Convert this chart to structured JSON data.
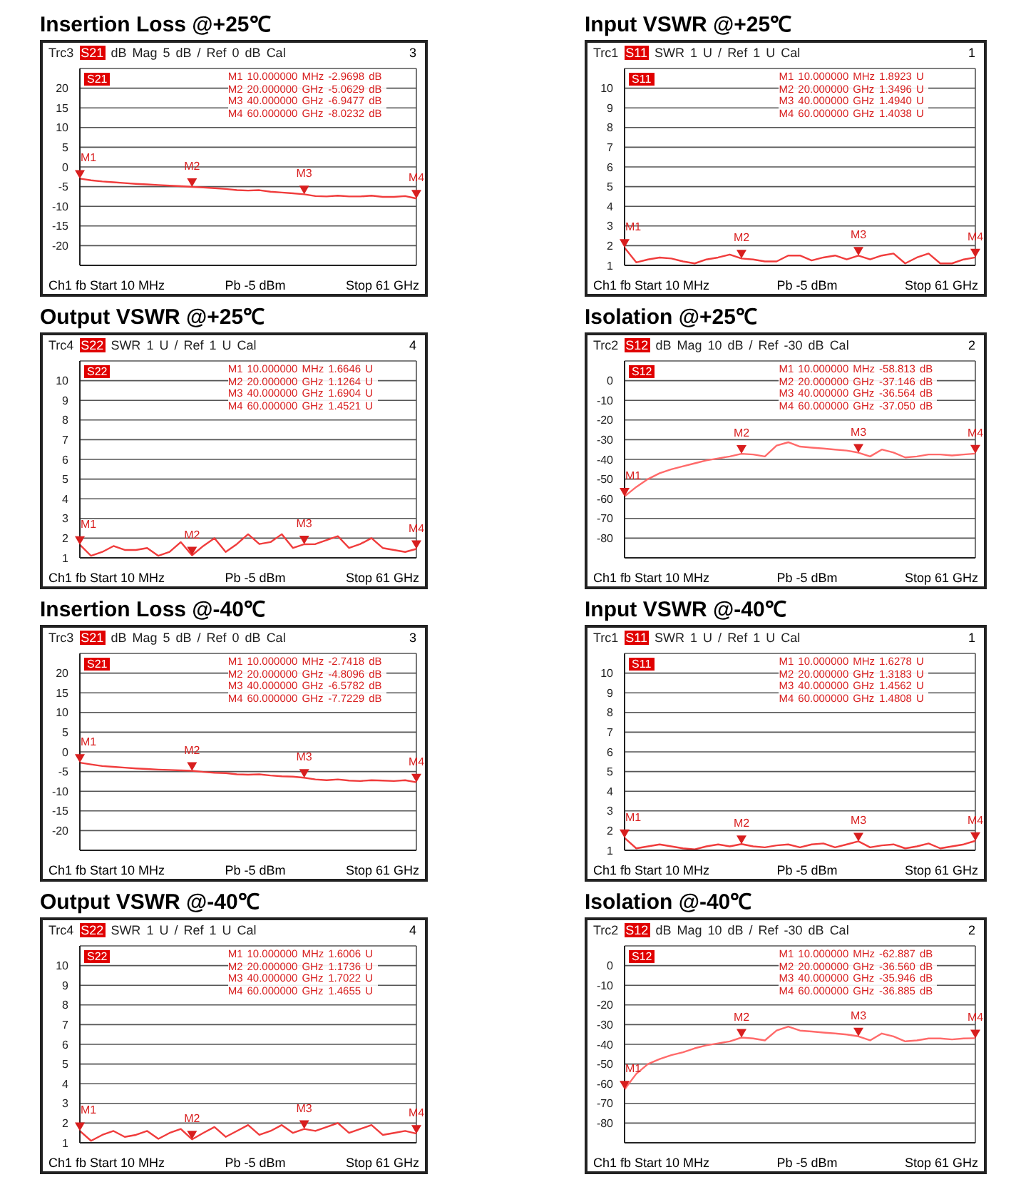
{
  "chart_data": [
    {
      "type": "line",
      "title": "Insertion Loss @+25℃",
      "subtitle": "Trc3 S21 dB Mag 5 dB / Ref 0 dB Cal",
      "color": "#f03c3c",
      "grid": true,
      "tick_labels": "y",
      "categories": [
        null,
        null,
        null,
        null,
        null,
        null,
        null,
        null,
        null,
        null,
        null,
        null,
        null,
        null,
        null,
        null,
        null,
        null,
        null,
        null,
        null,
        null,
        null,
        null,
        null,
        null,
        null,
        null,
        null,
        null,
        null
      ],
      "ylim": [
        -25,
        25
      ],
      "yticks": [
        {
          "value": 25,
          "label": null
        },
        20,
        15,
        10,
        5,
        0,
        -5,
        -10,
        -15,
        -20,
        {
          "value": -25,
          "label": null
        }
      ],
      "values": [
        -2.9698,
        -3.4,
        -3.7,
        -3.9,
        -4.1,
        -4.3,
        -4.45,
        -4.6,
        -4.75,
        -4.9,
        -5.0629,
        -5.2,
        -5.4,
        -5.6,
        -5.9,
        -6.0,
        -5.9,
        -6.3,
        -6.5,
        -6.7,
        -6.9477,
        -7.4,
        -7.5,
        -7.3,
        -7.5,
        -7.5,
        -7.3,
        -7.6,
        -7.6,
        -7.4,
        -8.0232
      ],
      "annotations": [
        "3",
        "S21",
        "M1 10.000000 MHz -2.9698 dB",
        "M2 20.000000 GHz -5.0629 dB",
        "M3 40.000000 GHz -6.9477 dB",
        "M4 60.000000 GHz -8.0232 dB",
        "Ch1 fb Start 10 MHz",
        "Pb -5 dBm",
        "Stop 61 GHz",
        {
          "text": "M1",
          "y": -2.9698
        },
        {
          "text": "M2",
          "y": -5.0629
        },
        {
          "text": "M3",
          "y": -6.9477
        },
        {
          "text": "M4",
          "y": -8.0232
        }
      ]
    },
    {
      "type": "line",
      "title": "Input VSWR @+25℃",
      "subtitle": "Trc1 S11 SWR 1 U / Ref 1 U Cal",
      "color": "#f03c3c",
      "grid": true,
      "tick_labels": "y",
      "categories": [
        null,
        null,
        null,
        null,
        null,
        null,
        null,
        null,
        null,
        null,
        null,
        null,
        null,
        null,
        null,
        null,
        null,
        null,
        null,
        null,
        null,
        null,
        null,
        null,
        null,
        null,
        null,
        null,
        null,
        null,
        null
      ],
      "ylim": [
        1,
        11
      ],
      "yticks": [
        {
          "value": 11,
          "label": null
        },
        10,
        9,
        8,
        7,
        6,
        5,
        4,
        3,
        2,
        1
      ],
      "values": [
        1.8923,
        1.15,
        1.3,
        1.4,
        1.35,
        1.2,
        1.1,
        1.3,
        1.4,
        1.55,
        1.3496,
        1.3,
        1.2,
        1.2,
        1.5,
        1.5,
        1.25,
        1.4,
        1.5,
        1.3,
        1.494,
        1.3,
        1.5,
        1.6,
        1.1,
        1.4,
        1.6,
        1.1,
        1.1,
        1.3,
        1.4038
      ],
      "annotations": [
        "1",
        "S11",
        "M1 10.000000 MHz 1.8923 U",
        "M2 20.000000 GHz 1.3496 U",
        "M3 40.000000 GHz 1.4940 U",
        "M4 60.000000 GHz 1.4038 U",
        "Ch1 fb Start 10 MHz",
        "Pb -5 dBm",
        "Stop 61 GHz",
        {
          "text": "M1",
          "y": 1.8923
        },
        {
          "text": "M2",
          "y": 1.3496
        },
        {
          "text": "M3",
          "y": 1.494
        },
        {
          "text": "M4",
          "y": 1.4038
        }
      ]
    },
    {
      "type": "line",
      "title": "Output VSWR @+25℃",
      "subtitle": "Trc4 S22 SWR 1 U / Ref 1 U Cal",
      "color": "#f03c3c",
      "grid": true,
      "tick_labels": "y",
      "categories": [
        null,
        null,
        null,
        null,
        null,
        null,
        null,
        null,
        null,
        null,
        null,
        null,
        null,
        null,
        null,
        null,
        null,
        null,
        null,
        null,
        null,
        null,
        null,
        null,
        null,
        null,
        null,
        null,
        null,
        null,
        null
      ],
      "ylim": [
        1,
        11
      ],
      "yticks": [
        {
          "value": 11,
          "label": null
        },
        10,
        9,
        8,
        7,
        6,
        5,
        4,
        3,
        2,
        1
      ],
      "values": [
        1.6646,
        1.1,
        1.3,
        1.6,
        1.4,
        1.4,
        1.5,
        1.1,
        1.3,
        1.8,
        1.1264,
        1.6,
        2.0,
        1.3,
        1.7,
        2.2,
        1.7,
        1.8,
        2.2,
        1.5,
        1.6904,
        1.7,
        1.9,
        2.1,
        1.5,
        1.7,
        2.0,
        1.5,
        1.4,
        1.3,
        1.4521
      ],
      "annotations": [
        "4",
        "S22",
        "M1 10.000000 MHz 1.6646 U",
        "M2 20.000000 GHz 1.1264 U",
        "M3 40.000000 GHz 1.6904 U",
        "M4 60.000000 GHz 1.4521 U",
        "Ch1 fb Start 10 MHz",
        "Pb -5 dBm",
        "Stop 61 GHz",
        {
          "text": "M1",
          "y": 1.6646
        },
        {
          "text": "M2",
          "y": 1.1264
        },
        {
          "text": "M3",
          "y": 1.6904
        },
        {
          "text": "M4",
          "y": 1.4521
        }
      ]
    },
    {
      "type": "line",
      "title": "Isolation @+25℃",
      "subtitle": "Trc2 S12 dB Mag 10 dB / Ref -30 dB Cal",
      "color": "#ff6a6a",
      "grid": true,
      "tick_labels": "y",
      "categories": [
        null,
        null,
        null,
        null,
        null,
        null,
        null,
        null,
        null,
        null,
        null,
        null,
        null,
        null,
        null,
        null,
        null,
        null,
        null,
        null,
        null,
        null,
        null,
        null,
        null,
        null,
        null,
        null,
        null,
        null,
        null
      ],
      "ylim": [
        -90,
        10
      ],
      "yticks": [
        {
          "value": 10,
          "label": null
        },
        0,
        -10,
        -20,
        -30,
        -40,
        -50,
        -60,
        -70,
        -80,
        {
          "value": -90,
          "label": null
        }
      ],
      "values": [
        -58.813,
        -54,
        -50,
        -47,
        -45,
        -43.5,
        -42,
        -40.5,
        -39.5,
        -38.5,
        -37.146,
        -37.5,
        -38.5,
        -33,
        -31.3,
        -33.5,
        -34,
        -34.5,
        -35,
        -35.5,
        -36.564,
        -38.5,
        -35,
        -36.5,
        -39,
        -38.5,
        -37.5,
        -37.5,
        -38,
        -37.5,
        -37.05
      ],
      "annotations": [
        "2",
        "S12",
        "M1 10.000000 MHz -58.813 dB",
        "M2 20.000000 GHz -37.146 dB",
        "M3 40.000000 GHz -36.564 dB",
        "M4 60.000000 GHz -37.050 dB",
        "Ch1 fb Start 10 MHz",
        "Pb -5 dBm",
        "Stop 61 GHz",
        {
          "text": "M1",
          "y": -58.813
        },
        {
          "text": "M2",
          "y": -37.146
        },
        {
          "text": "M3",
          "y": -36.564
        },
        {
          "text": "M4",
          "y": -37.05
        }
      ]
    },
    {
      "type": "line",
      "title": "Insertion Loss @-40℃",
      "subtitle": "Trc3 S21 dB Mag 5 dB / Ref 0 dB Cal",
      "color": "#f03c3c",
      "grid": true,
      "tick_labels": "y",
      "categories": [
        null,
        null,
        null,
        null,
        null,
        null,
        null,
        null,
        null,
        null,
        null,
        null,
        null,
        null,
        null,
        null,
        null,
        null,
        null,
        null,
        null,
        null,
        null,
        null,
        null,
        null,
        null,
        null,
        null,
        null,
        null
      ],
      "ylim": [
        -25,
        25
      ],
      "yticks": [
        {
          "value": 25,
          "label": null
        },
        20,
        15,
        10,
        5,
        0,
        -5,
        -10,
        -15,
        -20,
        {
          "value": -25,
          "label": null
        }
      ],
      "values": [
        -2.7418,
        -3.2,
        -3.6,
        -3.8,
        -4.0,
        -4.2,
        -4.35,
        -4.5,
        -4.6,
        -4.7,
        -4.8096,
        -5.1,
        -5.3,
        -5.4,
        -5.7,
        -5.8,
        -5.7,
        -6.0,
        -6.2,
        -6.3,
        -6.5782,
        -7.0,
        -7.2,
        -7.0,
        -7.3,
        -7.4,
        -7.2,
        -7.3,
        -7.4,
        -7.2,
        -7.7229
      ],
      "annotations": [
        "3",
        "S21",
        "M1 10.000000 MHz -2.7418 dB",
        "M2 20.000000 GHz -4.8096 dB",
        "M3 40.000000 GHz -6.5782 dB",
        "M4 60.000000 GHz -7.7229 dB",
        "Ch1 fb Start 10 MHz",
        "Pb -5 dBm",
        "Stop 61 GHz",
        {
          "text": "M1",
          "y": -2.7418
        },
        {
          "text": "M2",
          "y": -4.8096
        },
        {
          "text": "M3",
          "y": -6.5782
        },
        {
          "text": "M4",
          "y": -7.7229
        }
      ]
    },
    {
      "type": "line",
      "title": "Input VSWR @-40℃",
      "subtitle": "Trc1 S11 SWR 1 U / Ref 1 U Cal",
      "color": "#f03c3c",
      "grid": true,
      "tick_labels": "y",
      "categories": [
        null,
        null,
        null,
        null,
        null,
        null,
        null,
        null,
        null,
        null,
        null,
        null,
        null,
        null,
        null,
        null,
        null,
        null,
        null,
        null,
        null,
        null,
        null,
        null,
        null,
        null,
        null,
        null,
        null,
        null,
        null
      ],
      "ylim": [
        1,
        11
      ],
      "yticks": [
        {
          "value": 11,
          "label": null
        },
        10,
        9,
        8,
        7,
        6,
        5,
        4,
        3,
        2,
        1
      ],
      "values": [
        1.6278,
        1.1,
        1.2,
        1.3,
        1.2,
        1.1,
        1.05,
        1.2,
        1.3,
        1.2,
        1.3183,
        1.2,
        1.15,
        1.25,
        1.3,
        1.15,
        1.3,
        1.35,
        1.15,
        1.3,
        1.4562,
        1.15,
        1.25,
        1.3,
        1.1,
        1.2,
        1.35,
        1.1,
        1.2,
        1.3,
        1.4808
      ],
      "annotations": [
        "1",
        "S11",
        "M1 10.000000 MHz 1.6278 U",
        "M2 20.000000 GHz 1.3183 U",
        "M3 40.000000 GHz 1.4562 U",
        "M4 60.000000 GHz 1.4808 U",
        "Ch1 fb Start 10 MHz",
        "Pb -5 dBm",
        "Stop 61 GHz",
        {
          "text": "M1",
          "y": 1.6278
        },
        {
          "text": "M2",
          "y": 1.3183
        },
        {
          "text": "M3",
          "y": 1.4562
        },
        {
          "text": "M4",
          "y": 1.4808
        }
      ]
    },
    {
      "type": "line",
      "title": "Output VSWR @-40℃",
      "subtitle": "Trc4 S22 SWR 1 U / Ref 1 U Cal",
      "color": "#f03c3c",
      "grid": true,
      "tick_labels": "y",
      "categories": [
        null,
        null,
        null,
        null,
        null,
        null,
        null,
        null,
        null,
        null,
        null,
        null,
        null,
        null,
        null,
        null,
        null,
        null,
        null,
        null,
        null,
        null,
        null,
        null,
        null,
        null,
        null,
        null,
        null,
        null,
        null
      ],
      "ylim": [
        1,
        11
      ],
      "yticks": [
        {
          "value": 11,
          "label": null
        },
        10,
        9,
        8,
        7,
        6,
        5,
        4,
        3,
        2,
        1
      ],
      "values": [
        1.6006,
        1.1,
        1.4,
        1.6,
        1.3,
        1.4,
        1.6,
        1.2,
        1.5,
        1.7,
        1.1736,
        1.5,
        1.8,
        1.3,
        1.6,
        1.9,
        1.4,
        1.6,
        1.9,
        1.5,
        1.7022,
        1.6,
        1.8,
        2.0,
        1.5,
        1.7,
        1.9,
        1.4,
        1.5,
        1.6,
        1.4655
      ],
      "annotations": [
        "4",
        "S22",
        "M1 10.000000 MHz 1.6006 U",
        "M2 20.000000 GHz 1.1736 U",
        "M3 40.000000 GHz 1.7022 U",
        "M4 60.000000 GHz 1.4655 U",
        "Ch1 fb Start 10 MHz",
        "Pb -5 dBm",
        "Stop 61 GHz",
        {
          "text": "M1",
          "y": 1.6006
        },
        {
          "text": "M2",
          "y": 1.1736
        },
        {
          "text": "M3",
          "y": 1.7022
        },
        {
          "text": "M4",
          "y": 1.4655
        }
      ]
    },
    {
      "type": "line",
      "title": "Isolation @-40℃",
      "subtitle": "Trc2 S12 dB Mag 10 dB / Ref -30 dB Cal",
      "color": "#ff6a6a",
      "grid": true,
      "tick_labels": "y",
      "categories": [
        null,
        null,
        null,
        null,
        null,
        null,
        null,
        null,
        null,
        null,
        null,
        null,
        null,
        null,
        null,
        null,
        null,
        null,
        null,
        null,
        null,
        null,
        null,
        null,
        null,
        null,
        null,
        null,
        null,
        null,
        null
      ],
      "ylim": [
        -90,
        10
      ],
      "yticks": [
        {
          "value": 10,
          "label": null
        },
        0,
        -10,
        -20,
        -30,
        -40,
        -50,
        -60,
        -70,
        -80,
        {
          "value": -90,
          "label": null
        }
      ],
      "values": [
        -62.887,
        -55,
        -50,
        -47.5,
        -45.5,
        -44,
        -42,
        -40.5,
        -39.5,
        -38.5,
        -36.56,
        -37,
        -38,
        -33,
        -31,
        -33,
        -33.5,
        -34,
        -34.5,
        -35,
        -35.946,
        -38,
        -34.5,
        -36,
        -38.5,
        -38,
        -37,
        -37,
        -37.5,
        -37,
        -36.885
      ],
      "annotations": [
        "2",
        "S12",
        "M1 10.000000 MHz -62.887 dB",
        "M2 20.000000 GHz -36.560 dB",
        "M3 40.000000 GHz -35.946 dB",
        "M4 60.000000 GHz -36.885 dB",
        "Ch1 fb Start 10 MHz",
        "Pb -5 dBm",
        "Stop 61 GHz",
        {
          "text": "M1",
          "y": -62.887
        },
        {
          "text": "M2",
          "y": -36.56
        },
        {
          "text": "M3",
          "y": -35.946
        },
        {
          "text": "M4",
          "y": -36.885
        }
      ]
    }
  ]
}
